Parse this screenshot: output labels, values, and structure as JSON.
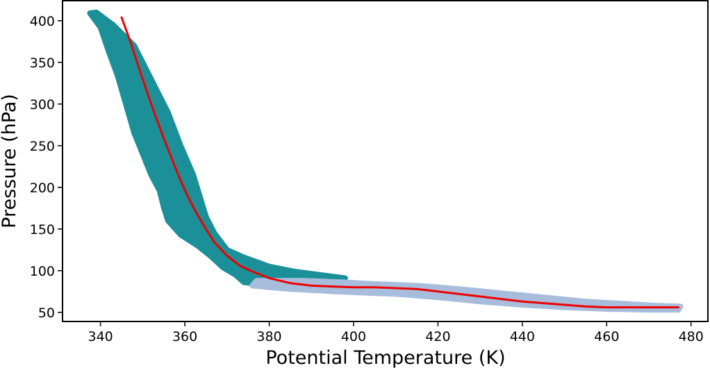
{
  "chart_data": {
    "type": "scatter",
    "title": "",
    "xlabel": "Potential Temperature (K)",
    "ylabel": "Pressure (hPa)",
    "xlim": [
      331,
      484
    ],
    "ylim": [
      39,
      424
    ],
    "xticks": [
      340,
      360,
      380,
      400,
      420,
      440,
      460,
      480
    ],
    "yticks": [
      50,
      100,
      150,
      200,
      250,
      300,
      350,
      400
    ],
    "grid": false,
    "legend": "none",
    "series": [
      {
        "kind": "band",
        "color": "#1b9098",
        "points": [
          [
            339,
            410
          ],
          [
            343,
            395
          ],
          [
            348,
            370
          ],
          [
            352,
            330
          ],
          [
            356,
            290
          ],
          [
            359,
            250
          ],
          [
            362,
            215
          ],
          [
            363.5,
            190
          ],
          [
            365,
            165
          ],
          [
            367,
            145
          ],
          [
            370,
            125
          ],
          [
            374,
            116
          ],
          [
            380,
            105
          ],
          [
            386,
            99
          ],
          [
            392,
            95
          ],
          [
            398,
            91
          ],
          [
            392,
            86
          ],
          [
            384,
            84
          ],
          [
            378,
            84
          ],
          [
            374,
            86
          ],
          [
            372,
            95
          ],
          [
            369,
            104
          ],
          [
            366,
            118
          ],
          [
            363,
            130
          ],
          [
            359,
            143
          ],
          [
            356,
            160
          ],
          [
            355,
            176
          ],
          [
            354,
            196
          ],
          [
            352,
            215
          ],
          [
            350,
            240
          ],
          [
            348,
            265
          ],
          [
            346,
            300
          ],
          [
            344,
            335
          ],
          [
            342,
            362
          ],
          [
            340,
            392
          ],
          [
            337.5,
            409
          ]
        ]
      },
      {
        "kind": "band",
        "color": "#a8bcdc",
        "points": [
          [
            377,
            88
          ],
          [
            388,
            88
          ],
          [
            398,
            86
          ],
          [
            405,
            84
          ],
          [
            415,
            82
          ],
          [
            425,
            78
          ],
          [
            435,
            73
          ],
          [
            445,
            68
          ],
          [
            455,
            63
          ],
          [
            465,
            60
          ],
          [
            472,
            58
          ],
          [
            477.5,
            57
          ],
          [
            477,
            53
          ],
          [
            470,
            53
          ],
          [
            460,
            54
          ],
          [
            450,
            56
          ],
          [
            440,
            59
          ],
          [
            430,
            63
          ],
          [
            420,
            68
          ],
          [
            410,
            72
          ],
          [
            400,
            74
          ],
          [
            392,
            76
          ],
          [
            385,
            78
          ],
          [
            380,
            80
          ],
          [
            376,
            82
          ]
        ]
      },
      {
        "kind": "line",
        "color": "#ee0000",
        "x": [
          345,
          347,
          349,
          351,
          353,
          355,
          357,
          359,
          361,
          363,
          365,
          367,
          370,
          373,
          376,
          380,
          385,
          390,
          395,
          400,
          405,
          410,
          415,
          420,
          425,
          430,
          435,
          440,
          445,
          450,
          455,
          460,
          465,
          470,
          477
        ],
        "y": [
          404,
          376,
          345,
          315,
          286,
          259,
          233,
          208,
          186,
          167,
          150,
          134,
          118,
          106,
          99,
          91,
          85,
          82,
          81,
          80,
          80,
          79,
          78,
          75,
          72,
          69,
          66,
          63,
          61,
          59,
          57,
          56,
          56,
          56,
          56
        ]
      }
    ]
  }
}
